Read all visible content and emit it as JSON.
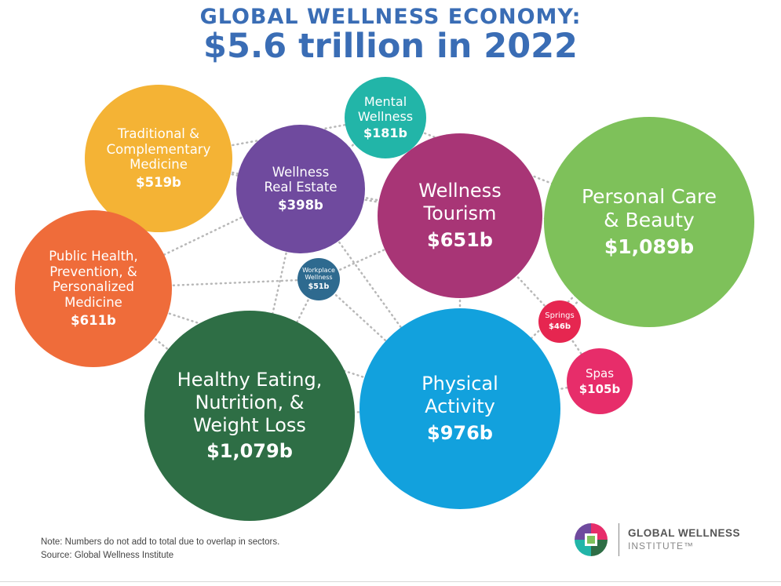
{
  "header": {
    "title_line1": "GLOBAL WELLNESS ECONOMY:",
    "title_line2": "$5.6 trillion in 2022"
  },
  "chart_data": {
    "type": "bubble",
    "title": "GLOBAL WELLNESS ECONOMY: $5.6 trillion in 2022",
    "total": "$5.6 trillion",
    "year": 2022,
    "unit": "billion USD",
    "series": [
      {
        "name": "Traditional &\nComplementary\nMedicine",
        "value": 519,
        "label": "$519b",
        "color": "#f4b335"
      },
      {
        "name": "Mental\nWellness",
        "value": 181,
        "label": "$181b",
        "color": "#22b5a8"
      },
      {
        "name": "Wellness\nReal Estate",
        "value": 398,
        "label": "$398b",
        "color": "#6f4a9e"
      },
      {
        "name": "Wellness\nTourism",
        "value": 651,
        "label": "$651b",
        "color": "#a83576"
      },
      {
        "name": "Personal Care\n& Beauty",
        "value": 1089,
        "label": "$1,089b",
        "color": "#7ec15a"
      },
      {
        "name": "Public Health,\nPrevention, &\nPersonalized\nMedicine",
        "value": 611,
        "label": "$611b",
        "color": "#ef6c3a"
      },
      {
        "name": "Workplace\nWellness",
        "value": 51,
        "label": "$51b",
        "color": "#2e6a8f"
      },
      {
        "name": "Springs",
        "value": 46,
        "label": "$46b",
        "color": "#e62650"
      },
      {
        "name": "Spas",
        "value": 105,
        "label": "$105b",
        "color": "#e72d6a"
      },
      {
        "name": "Healthy Eating,\nNutrition, &\nWeight Loss",
        "value": 1079,
        "label": "$1,079b",
        "color": "#2e6e45"
      },
      {
        "name": "Physical\nActivity",
        "value": 976,
        "label": "$976b",
        "color": "#12a1dd"
      }
    ]
  },
  "footer": {
    "note": "Note: Numbers do not add to total due to overlap in sectors.",
    "source": "Source: Global Wellness Institute",
    "logo_line1": "GLOBAL WELLNESS",
    "logo_line2": "INSTITUTE™"
  }
}
